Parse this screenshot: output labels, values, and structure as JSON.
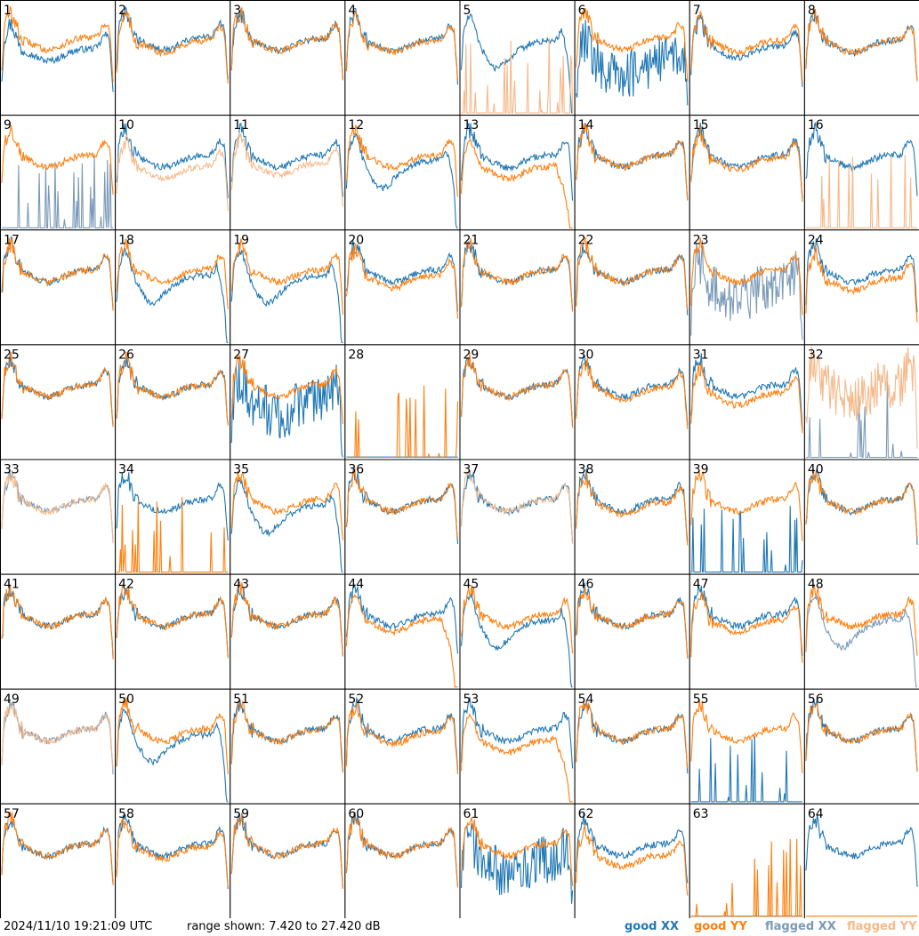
{
  "footer": {
    "timestamp": "2024/11/10 19:21:09 UTC",
    "range_text": "range shown: 7.420 to 27.420 dB",
    "legend": {
      "good_xx": "good XX",
      "good_yy": "good YY",
      "flagged_xx": "flagged XX",
      "flagged_yy": "flagged YY"
    }
  },
  "colors": {
    "good_xx": "#1f77b4",
    "good_yy": "#ff7f0e",
    "flagged_xx": "#7a9ab8",
    "flagged_yy": "#f5b98a",
    "grid_line": "#000000",
    "background": "#ffffff"
  },
  "chart_data": {
    "type": "line",
    "layout_description": "8x8 grid of small-multiple bandpass panels, one per antenna",
    "ylim": [
      7.42,
      27.42
    ],
    "yunit": "dB",
    "series_kinds": [
      "good XX",
      "good YY",
      "flagged XX",
      "flagged YY"
    ],
    "panels": [
      {
        "label": "1",
        "xx": "good",
        "yy": "good",
        "xx_shape": "normal",
        "yy_shape": "normal",
        "xx_off": -1.5,
        "yy_off": 0.5
      },
      {
        "label": "2",
        "xx": "good",
        "yy": "good",
        "xx_shape": "normal",
        "yy_shape": "normal",
        "xx_off": 0.5,
        "yy_off": 0
      },
      {
        "label": "3",
        "xx": "good",
        "yy": "good",
        "xx_shape": "normal",
        "yy_shape": "normal",
        "xx_off": 0.3,
        "yy_off": 0.3
      },
      {
        "label": "4",
        "xx": "good",
        "yy": "good",
        "xx_shape": "normal",
        "yy_shape": "normal",
        "xx_off": 0.2,
        "yy_off": 0
      },
      {
        "label": "5",
        "xx": "good",
        "yy": "flagged",
        "xx_shape": "dip",
        "yy_shape": "spikes",
        "xx_off": 0,
        "yy_off": 0
      },
      {
        "label": "6",
        "xx": "good",
        "yy": "good",
        "xx_shape": "noisy",
        "yy_shape": "normal",
        "xx_off": -4,
        "yy_off": 0.5
      },
      {
        "label": "7",
        "xx": "good",
        "yy": "good",
        "xx_shape": "normal",
        "yy_shape": "normal",
        "xx_off": -1,
        "yy_off": 0
      },
      {
        "label": "8",
        "xx": "good",
        "yy": "good",
        "xx_shape": "normal",
        "yy_shape": "normal",
        "xx_off": 0,
        "yy_off": 0
      },
      {
        "label": "9",
        "xx": "flagged",
        "yy": "good",
        "xx_shape": "spikes",
        "yy_shape": "normal",
        "xx_off": 0,
        "yy_off": 0
      },
      {
        "label": "10",
        "xx": "good",
        "yy": "flagged",
        "xx_shape": "normal",
        "yy_shape": "normal",
        "xx_off": 0,
        "yy_off": -2
      },
      {
        "label": "11",
        "xx": "good",
        "yy": "flagged",
        "xx_shape": "normal",
        "yy_shape": "normal",
        "xx_off": 0,
        "yy_off": -1.5
      },
      {
        "label": "12",
        "xx": "good",
        "yy": "good",
        "xx_shape": "dip",
        "yy_shape": "normal",
        "xx_off": -1,
        "yy_off": 0
      },
      {
        "label": "13",
        "xx": "good",
        "yy": "good",
        "xx_shape": "normal",
        "yy_shape": "dropoff",
        "xx_off": 0,
        "yy_off": -2
      },
      {
        "label": "14",
        "xx": "good",
        "yy": "good",
        "xx_shape": "normal",
        "yy_shape": "normal",
        "xx_off": 0,
        "yy_off": 0
      },
      {
        "label": "15",
        "xx": "good",
        "yy": "good",
        "xx_shape": "normal",
        "yy_shape": "normal",
        "xx_off": 0,
        "yy_off": -0.5
      },
      {
        "label": "16",
        "xx": "good",
        "yy": "flagged",
        "xx_shape": "normal",
        "yy_shape": "spikes",
        "xx_off": 0,
        "yy_off": 0
      },
      {
        "label": "17",
        "xx": "good",
        "yy": "good",
        "xx_shape": "normal",
        "yy_shape": "normal",
        "xx_off": 0,
        "yy_off": 0
      },
      {
        "label": "18",
        "xx": "good",
        "yy": "good",
        "xx_shape": "dip",
        "yy_shape": "normal",
        "xx_off": -1,
        "yy_off": 0
      },
      {
        "label": "19",
        "xx": "good",
        "yy": "good",
        "xx_shape": "dip",
        "yy_shape": "normal",
        "xx_off": -1,
        "yy_off": 0
      },
      {
        "label": "20",
        "xx": "good",
        "yy": "good",
        "xx_shape": "normal",
        "yy_shape": "normal",
        "xx_off": 0,
        "yy_off": -1
      },
      {
        "label": "21",
        "xx": "good",
        "yy": "good",
        "xx_shape": "normal",
        "yy_shape": "normal",
        "xx_off": 0,
        "yy_off": 0
      },
      {
        "label": "22",
        "xx": "good",
        "yy": "good",
        "xx_shape": "normal",
        "yy_shape": "normal",
        "xx_off": 0,
        "yy_off": 0
      },
      {
        "label": "23",
        "xx": "flagged",
        "yy": "good",
        "xx_shape": "noisy",
        "yy_shape": "normal",
        "xx_off": -3,
        "yy_off": 0
      },
      {
        "label": "24",
        "xx": "good",
        "yy": "good",
        "xx_shape": "normal",
        "yy_shape": "normal",
        "xx_off": 0,
        "yy_off": -1.5
      },
      {
        "label": "25",
        "xx": "good",
        "yy": "good",
        "xx_shape": "normal",
        "yy_shape": "normal",
        "xx_off": 0,
        "yy_off": 0
      },
      {
        "label": "26",
        "xx": "good",
        "yy": "good",
        "xx_shape": "normal",
        "yy_shape": "normal",
        "xx_off": 0,
        "yy_off": 0
      },
      {
        "label": "27",
        "xx": "good",
        "yy": "good",
        "xx_shape": "noisy",
        "yy_shape": "normal",
        "xx_off": -3,
        "yy_off": 0
      },
      {
        "label": "28",
        "xx": "good",
        "yy": "good",
        "xx_shape": "flat",
        "yy_shape": "spikes",
        "xx_off": 0,
        "yy_off": 0
      },
      {
        "label": "29",
        "xx": "good",
        "yy": "good",
        "xx_shape": "normal",
        "yy_shape": "normal",
        "xx_off": 0,
        "yy_off": 0
      },
      {
        "label": "30",
        "xx": "good",
        "yy": "good",
        "xx_shape": "normal",
        "yy_shape": "normal",
        "xx_off": 0,
        "yy_off": -0.5
      },
      {
        "label": "31",
        "xx": "good",
        "yy": "good",
        "xx_shape": "normal",
        "yy_shape": "normal",
        "xx_off": 0,
        "yy_off": -1.5
      },
      {
        "label": "32",
        "xx": "flagged",
        "yy": "flagged",
        "xx_shape": "spikes",
        "yy_shape": "noisy",
        "xx_off": 0,
        "yy_off": 0
      },
      {
        "label": "33",
        "xx": "flagged",
        "yy": "flagged",
        "xx_shape": "normal",
        "yy_shape": "normal",
        "xx_off": 0,
        "yy_off": 0
      },
      {
        "label": "34",
        "xx": "good",
        "yy": "good",
        "xx_shape": "normal",
        "yy_shape": "spikes",
        "xx_off": 0,
        "yy_off": 0
      },
      {
        "label": "35",
        "xx": "good",
        "yy": "good",
        "xx_shape": "dip",
        "yy_shape": "normal",
        "xx_off": -1,
        "yy_off": 0
      },
      {
        "label": "36",
        "xx": "good",
        "yy": "good",
        "xx_shape": "normal",
        "yy_shape": "normal",
        "xx_off": 0,
        "yy_off": 0
      },
      {
        "label": "37",
        "xx": "good",
        "yy": "flagged",
        "xx_shape": "normal",
        "yy_shape": "normal",
        "xx_off": 0,
        "yy_off": 0
      },
      {
        "label": "38",
        "xx": "good",
        "yy": "good",
        "xx_shape": "normal",
        "yy_shape": "normal",
        "xx_off": 0,
        "yy_off": -0.5
      },
      {
        "label": "39",
        "xx": "good",
        "yy": "good",
        "xx_shape": "spikes",
        "yy_shape": "normal",
        "xx_off": 0,
        "yy_off": 0
      },
      {
        "label": "40",
        "xx": "good",
        "yy": "good",
        "xx_shape": "normal",
        "yy_shape": "normal",
        "xx_off": 0,
        "yy_off": 0
      },
      {
        "label": "41",
        "xx": "good",
        "yy": "good",
        "xx_shape": "normal",
        "yy_shape": "normal",
        "xx_off": 0,
        "yy_off": 0
      },
      {
        "label": "42",
        "xx": "good",
        "yy": "good",
        "xx_shape": "normal",
        "yy_shape": "normal",
        "xx_off": 0,
        "yy_off": 0
      },
      {
        "label": "43",
        "xx": "good",
        "yy": "good",
        "xx_shape": "normal",
        "yy_shape": "normal",
        "xx_off": 0,
        "yy_off": 0
      },
      {
        "label": "44",
        "xx": "good",
        "yy": "good",
        "xx_shape": "normal",
        "yy_shape": "dropoff",
        "xx_off": 0,
        "yy_off": -1
      },
      {
        "label": "45",
        "xx": "good",
        "yy": "good",
        "xx_shape": "dip",
        "yy_shape": "normal",
        "xx_off": -1,
        "yy_off": 0
      },
      {
        "label": "46",
        "xx": "good",
        "yy": "good",
        "xx_shape": "normal",
        "yy_shape": "normal",
        "xx_off": 0,
        "yy_off": 0
      },
      {
        "label": "47",
        "xx": "good",
        "yy": "good",
        "xx_shape": "normal",
        "yy_shape": "normal",
        "xx_off": 0,
        "yy_off": -1
      },
      {
        "label": "48",
        "xx": "flagged",
        "yy": "good",
        "xx_shape": "dip",
        "yy_shape": "normal",
        "xx_off": -1,
        "yy_off": 0
      },
      {
        "label": "49",
        "xx": "flagged",
        "yy": "flagged",
        "xx_shape": "normal",
        "yy_shape": "normal",
        "xx_off": 0,
        "yy_off": 0
      },
      {
        "label": "50",
        "xx": "good",
        "yy": "good",
        "xx_shape": "dip",
        "yy_shape": "normal",
        "xx_off": -1,
        "yy_off": 0
      },
      {
        "label": "51",
        "xx": "good",
        "yy": "good",
        "xx_shape": "normal",
        "yy_shape": "normal",
        "xx_off": 0,
        "yy_off": 0
      },
      {
        "label": "52",
        "xx": "good",
        "yy": "good",
        "xx_shape": "normal",
        "yy_shape": "normal",
        "xx_off": 0,
        "yy_off": -0.5
      },
      {
        "label": "53",
        "xx": "good",
        "yy": "good",
        "xx_shape": "normal",
        "yy_shape": "dropoff",
        "xx_off": 0,
        "yy_off": -2
      },
      {
        "label": "54",
        "xx": "good",
        "yy": "good",
        "xx_shape": "normal",
        "yy_shape": "normal",
        "xx_off": 0,
        "yy_off": 0
      },
      {
        "label": "55",
        "xx": "good",
        "yy": "good",
        "xx_shape": "spikes",
        "yy_shape": "normal",
        "xx_off": 0,
        "yy_off": 0
      },
      {
        "label": "56",
        "xx": "good",
        "yy": "good",
        "xx_shape": "normal",
        "yy_shape": "normal",
        "xx_off": 0,
        "yy_off": 0
      },
      {
        "label": "57",
        "xx": "good",
        "yy": "good",
        "xx_shape": "normal",
        "yy_shape": "normal",
        "xx_off": 0,
        "yy_off": 0
      },
      {
        "label": "58",
        "xx": "good",
        "yy": "good",
        "xx_shape": "normal",
        "yy_shape": "normal",
        "xx_off": 0,
        "yy_off": -0.5
      },
      {
        "label": "59",
        "xx": "good",
        "yy": "good",
        "xx_shape": "normal",
        "yy_shape": "normal",
        "xx_off": 0,
        "yy_off": 0
      },
      {
        "label": "60",
        "xx": "good",
        "yy": "good",
        "xx_shape": "normal",
        "yy_shape": "normal",
        "xx_off": 0,
        "yy_off": 0
      },
      {
        "label": "61",
        "xx": "good",
        "yy": "good",
        "xx_shape": "noisy",
        "yy_shape": "normal",
        "xx_off": -3,
        "yy_off": 0
      },
      {
        "label": "62",
        "xx": "good",
        "yy": "good",
        "xx_shape": "normal",
        "yy_shape": "normal",
        "xx_off": 0,
        "yy_off": -2
      },
      {
        "label": "63",
        "xx": "good",
        "yy": "good",
        "xx_shape": "flat",
        "yy_shape": "spikes",
        "xx_off": 0,
        "yy_off": 0
      },
      {
        "label": "64",
        "xx": "good",
        "yy": "good",
        "xx_shape": "normal",
        "yy_shape": "flat",
        "xx_off": 0,
        "yy_off": 0
      }
    ]
  }
}
